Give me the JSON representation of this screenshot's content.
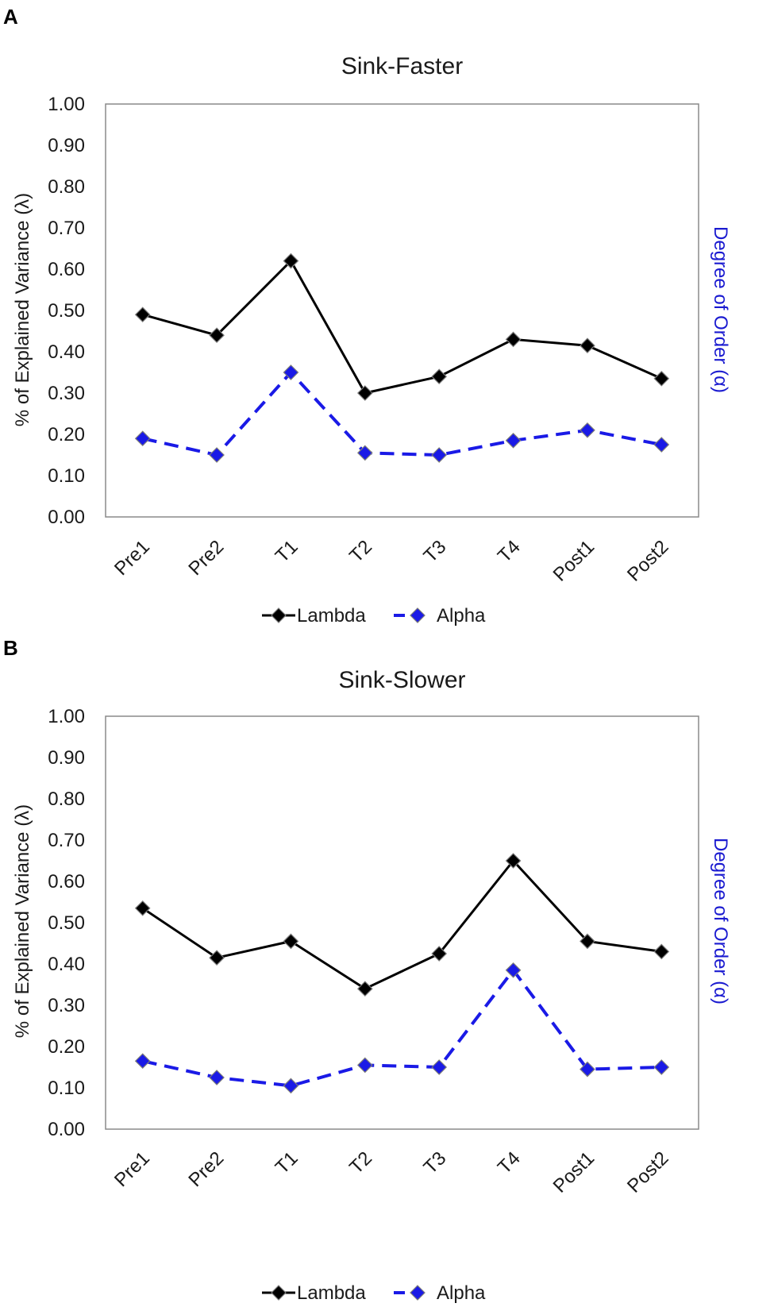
{
  "chart_data": [
    {
      "panel": "A",
      "type": "line",
      "title": "Sink-Faster",
      "categories": [
        "Pre1",
        "Pre2",
        "T1",
        "T2",
        "T3",
        "T4",
        "Post1",
        "Post2"
      ],
      "ylabel": "% of Explained Variance (λ)",
      "y2label": "Degree of Order (α)",
      "ylim": [
        0,
        1
      ],
      "yticks": [
        "0.00",
        "0.10",
        "0.20",
        "0.30",
        "0.40",
        "0.50",
        "0.60",
        "0.70",
        "0.80",
        "0.90",
        "1.00"
      ],
      "series": [
        {
          "name": "Lambda",
          "color": "#000000",
          "marker_fill": "#000000",
          "values": [
            0.49,
            0.44,
            0.62,
            0.3,
            0.34,
            0.43,
            0.415,
            0.335
          ]
        },
        {
          "name": "Alpha",
          "color": "#1a1ae6",
          "marker_fill": "#1a1ae6",
          "values": [
            0.19,
            0.15,
            0.35,
            0.155,
            0.15,
            0.185,
            0.21,
            0.175
          ]
        }
      ],
      "legend": [
        "Lambda",
        "Alpha"
      ]
    },
    {
      "panel": "B",
      "type": "line",
      "title": "Sink-Slower",
      "categories": [
        "Pre1",
        "Pre2",
        "T1",
        "T2",
        "T3",
        "T4",
        "Post1",
        "Post2"
      ],
      "ylabel": "% of Explained Variance (λ)",
      "y2label": "Degree of Order (α)",
      "ylim": [
        0,
        1
      ],
      "yticks": [
        "0.00",
        "0.10",
        "0.20",
        "0.30",
        "0.40",
        "0.50",
        "0.60",
        "0.70",
        "0.80",
        "0.90",
        "1.00"
      ],
      "series": [
        {
          "name": "Lambda",
          "color": "#000000",
          "marker_fill": "#000000",
          "values": [
            0.535,
            0.415,
            0.455,
            0.34,
            0.425,
            0.65,
            0.455,
            0.43
          ]
        },
        {
          "name": "Alpha",
          "color": "#1a1ae6",
          "marker_fill": "#1a1ae6",
          "values": [
            0.165,
            0.125,
            0.105,
            0.155,
            0.15,
            0.385,
            0.145,
            0.15
          ]
        }
      ],
      "legend": [
        "Lambda",
        "Alpha"
      ]
    }
  ]
}
